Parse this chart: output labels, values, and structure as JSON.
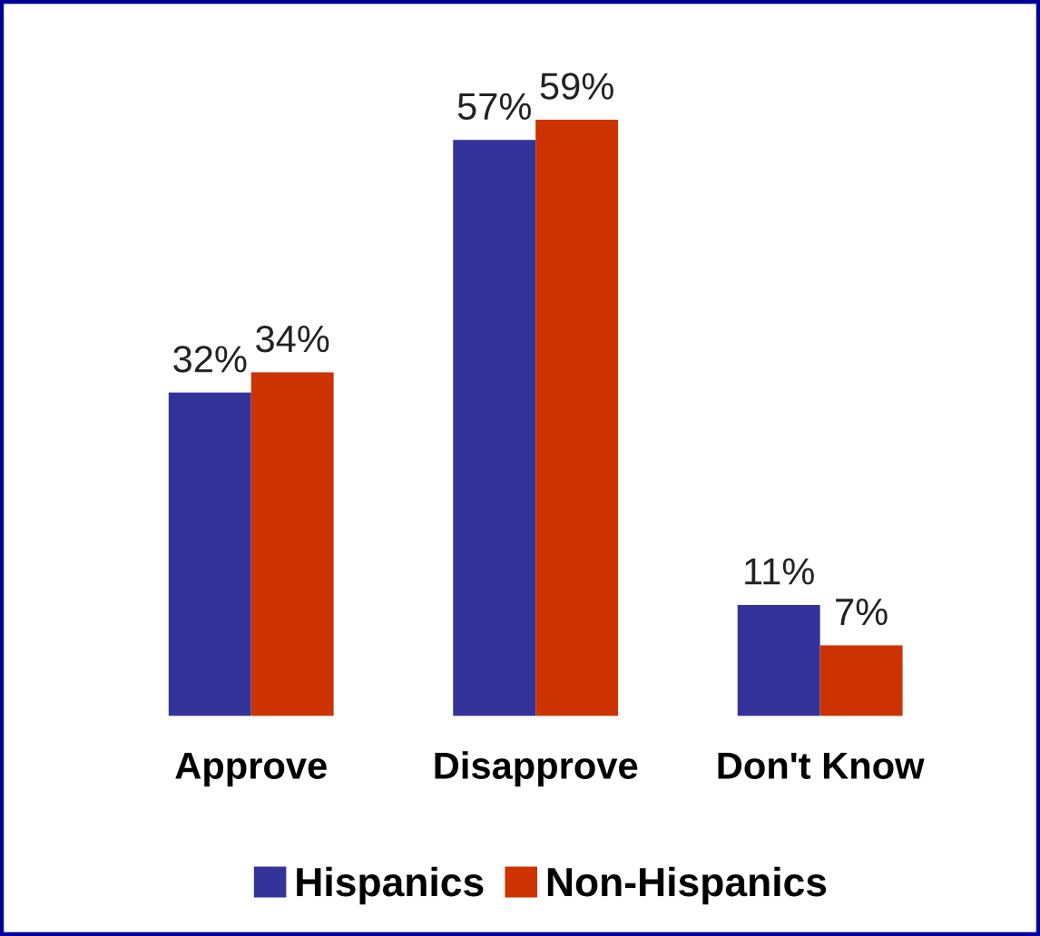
{
  "chart_data": {
    "type": "bar",
    "categories": [
      "Approve",
      "Disapprove",
      "Don't Know"
    ],
    "series": [
      {
        "name": "Hispanics",
        "color": "#333399",
        "values": [
          32,
          57,
          11
        ],
        "value_labels": [
          "32%",
          "57%",
          "11%"
        ]
      },
      {
        "name": "Non-Hispanics",
        "color": "#cc3300",
        "values": [
          34,
          59,
          7
        ],
        "value_labels": [
          "34%",
          "59%",
          "7%"
        ]
      }
    ],
    "legend": "bottom",
    "grid": false
  }
}
